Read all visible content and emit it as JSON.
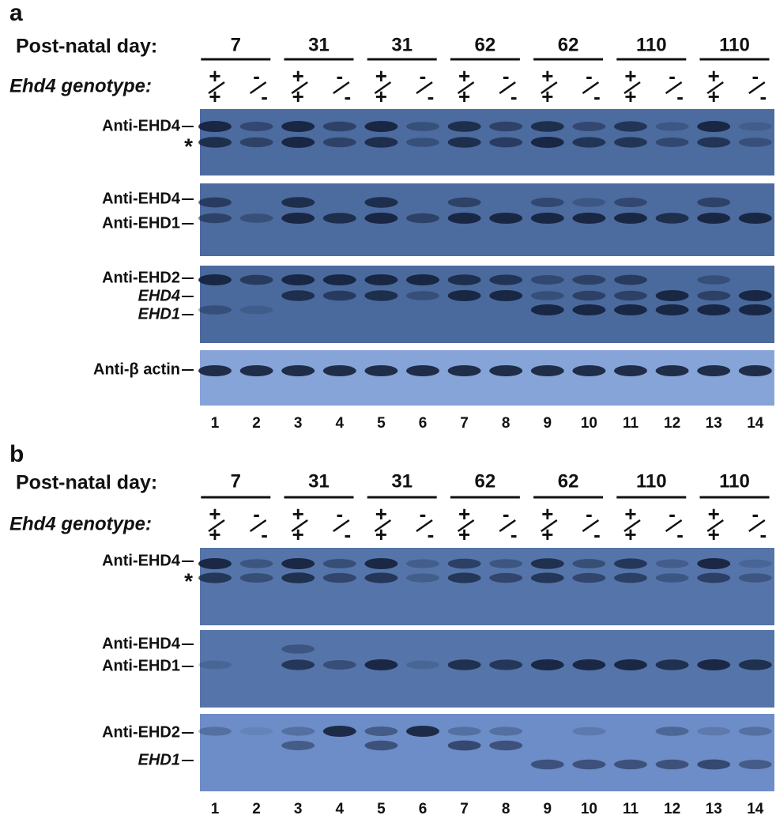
{
  "panels": [
    {
      "label": "a",
      "day_heading": "Post-natal day:",
      "days": [
        "7",
        "31",
        "31",
        "62",
        "62",
        "110",
        "110"
      ],
      "genotype_heading": "Ehd4 genotype:",
      "genotypes": [
        {
          "top": "+",
          "bottom": "+"
        },
        {
          "top": "-",
          "bottom": "-"
        },
        {
          "top": "+",
          "bottom": "+"
        },
        {
          "top": "-",
          "bottom": "-"
        },
        {
          "top": "+",
          "bottom": "+"
        },
        {
          "top": "-",
          "bottom": "-"
        },
        {
          "top": "+",
          "bottom": "+"
        },
        {
          "top": "-",
          "bottom": "-"
        },
        {
          "top": "+",
          "bottom": "+"
        },
        {
          "top": "-",
          "bottom": "-"
        },
        {
          "top": "+",
          "bottom": "+"
        },
        {
          "top": "-",
          "bottom": "-"
        },
        {
          "top": "+",
          "bottom": "+"
        },
        {
          "top": "-",
          "bottom": "-"
        }
      ],
      "blots": [
        {
          "labels": [
            {
              "text": "Anti-EHD4",
              "italic": false
            },
            {
              "text": "*",
              "italic": false
            }
          ]
        },
        {
          "labels": [
            {
              "text": "Anti-EHD4",
              "italic": false
            },
            {
              "text": "Anti-EHD1",
              "italic": false
            }
          ]
        },
        {
          "labels": [
            {
              "text": "Anti-EHD2",
              "italic": false
            },
            {
              "text": "EHD4",
              "italic": true
            },
            {
              "text": "EHD1",
              "italic": true
            }
          ]
        },
        {
          "labels": [
            {
              "text": "Anti-β actin",
              "italic": false
            }
          ]
        }
      ],
      "lanes": [
        "1",
        "2",
        "3",
        "4",
        "5",
        "6",
        "7",
        "8",
        "9",
        "10",
        "11",
        "12",
        "13",
        "14"
      ]
    },
    {
      "label": "b",
      "day_heading": "Post-natal day:",
      "days": [
        "7",
        "31",
        "31",
        "62",
        "62",
        "110",
        "110"
      ],
      "genotype_heading": "Ehd4 genotype:",
      "genotypes": [
        {
          "top": "+",
          "bottom": "+"
        },
        {
          "top": "-",
          "bottom": "-"
        },
        {
          "top": "+",
          "bottom": "+"
        },
        {
          "top": "-",
          "bottom": "-"
        },
        {
          "top": "+",
          "bottom": "+"
        },
        {
          "top": "-",
          "bottom": "-"
        },
        {
          "top": "+",
          "bottom": "+"
        },
        {
          "top": "-",
          "bottom": "-"
        },
        {
          "top": "+",
          "bottom": "+"
        },
        {
          "top": "-",
          "bottom": "-"
        },
        {
          "top": "+",
          "bottom": "+"
        },
        {
          "top": "-",
          "bottom": "-"
        },
        {
          "top": "+",
          "bottom": "+"
        },
        {
          "top": "-",
          "bottom": "-"
        }
      ],
      "blots": [
        {
          "labels": [
            {
              "text": "Anti-EHD4",
              "italic": false
            },
            {
              "text": "*",
              "italic": false
            }
          ]
        },
        {
          "labels": [
            {
              "text": "Anti-EHD4",
              "italic": false
            },
            {
              "text": "Anti-EHD1",
              "italic": false
            }
          ]
        },
        {
          "labels": [
            {
              "text": "Anti-EHD2",
              "italic": false
            },
            {
              "text": "EHD1",
              "italic": true
            }
          ]
        }
      ],
      "lanes": [
        "1",
        "2",
        "3",
        "4",
        "5",
        "6",
        "7",
        "8",
        "9",
        "10",
        "11",
        "12",
        "13",
        "14"
      ]
    }
  ]
}
